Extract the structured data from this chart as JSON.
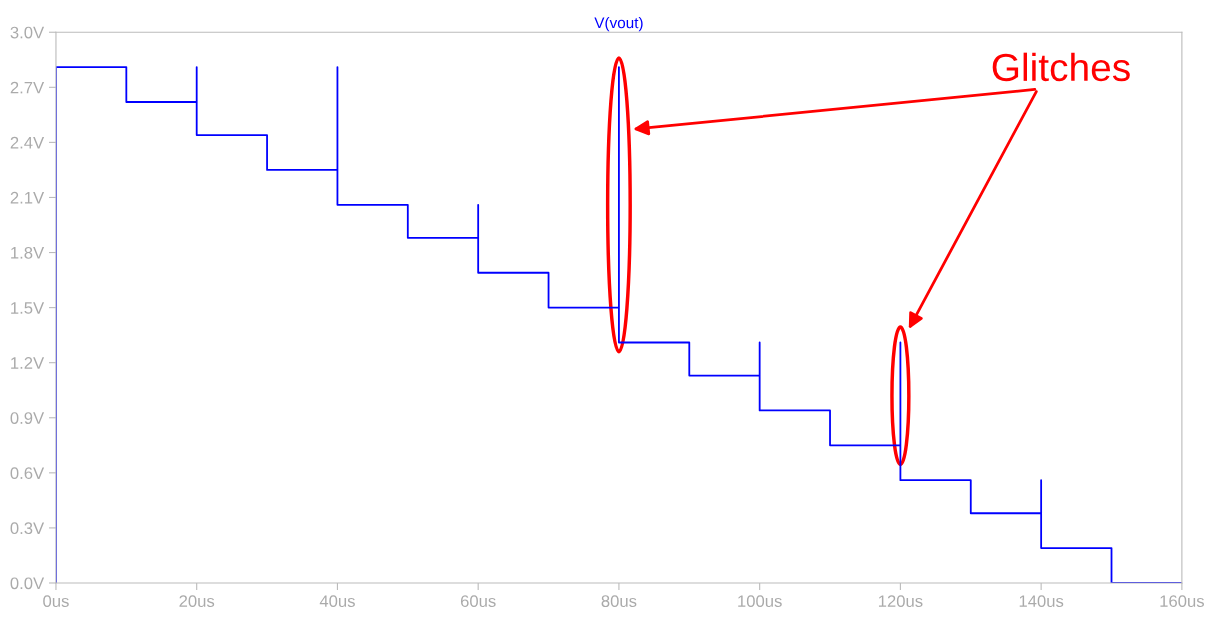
{
  "chart_data": {
    "type": "line",
    "title": "V(vout)",
    "x": [
      0,
      0,
      10,
      10,
      20,
      20,
      20,
      30,
      30,
      40,
      40,
      40,
      50,
      50,
      60,
      60,
      60,
      70,
      70,
      80,
      80,
      80,
      90,
      90,
      100,
      100,
      100,
      110,
      110,
      120,
      120,
      120,
      130,
      130,
      140,
      140,
      140,
      150,
      150,
      160
    ],
    "series": [
      {
        "color": "#0000ff",
        "values": [
          0,
          2.81,
          2.81,
          2.62,
          2.62,
          2.81,
          2.44,
          2.44,
          2.25,
          2.25,
          2.81,
          2.06,
          2.06,
          1.88,
          1.88,
          2.06,
          1.69,
          1.69,
          1.5,
          1.5,
          2.81,
          1.31,
          1.31,
          1.13,
          1.13,
          1.31,
          0.94,
          0.94,
          0.75,
          0.75,
          1.31,
          0.56,
          0.56,
          0.38,
          0.38,
          0.56,
          0.19,
          0.19,
          0,
          0
        ]
      }
    ],
    "xlim": [
      0,
      160
    ],
    "xticks": [
      {
        "value": 0,
        "label": "0us"
      },
      {
        "value": 20,
        "label": "20us"
      },
      {
        "value": 40,
        "label": "40us"
      },
      {
        "value": 60,
        "label": "60us"
      },
      {
        "value": 80,
        "label": "80us"
      },
      {
        "value": 100,
        "label": "100us"
      },
      {
        "value": 120,
        "label": "120us"
      },
      {
        "value": 140,
        "label": "140us"
      },
      {
        "value": 160,
        "label": "160us"
      }
    ],
    "ylim": [
      0,
      3
    ],
    "yticks": [
      {
        "value": 0,
        "label": "0.0V"
      },
      {
        "value": 0.3,
        "label": "0.3V"
      },
      {
        "value": 0.6,
        "label": "0.6V"
      },
      {
        "value": 0.9,
        "label": "0.9V"
      },
      {
        "value": 1.2,
        "label": "1.2V"
      },
      {
        "value": 1.5,
        "label": "1.5V"
      },
      {
        "value": 1.8,
        "label": "1.8V"
      },
      {
        "value": 2.1,
        "label": "2.1V"
      },
      {
        "value": 2.4,
        "label": "2.4V"
      },
      {
        "value": 2.7,
        "label": "2.7V"
      },
      {
        "value": 3,
        "label": "3.0V"
      }
    ],
    "grid": false,
    "annotations": [
      "Glitches"
    ]
  }
}
